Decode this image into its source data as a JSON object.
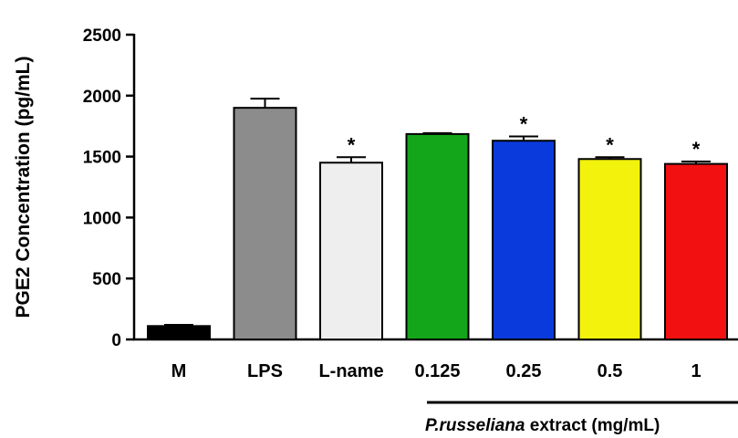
{
  "chart_data": {
    "type": "bar",
    "ylabel": "PGE2 Concentration (pg/mL)",
    "ylim": [
      0,
      2500
    ],
    "yticks": [
      0,
      500,
      1000,
      1500,
      2000,
      2500
    ],
    "categories": [
      "M",
      "LPS",
      "L-name",
      "0.125",
      "0.25",
      "0.5",
      "1"
    ],
    "values": [
      110,
      1900,
      1450,
      1685,
      1630,
      1480,
      1440
    ],
    "errors": [
      10,
      75,
      45,
      8,
      35,
      15,
      20
    ],
    "colors": [
      "#000000",
      "#8c8c8c",
      "#eeeeee",
      "#13a51a",
      "#0a3adb",
      "#f2f20c",
      "#f21010"
    ],
    "significance": [
      "",
      "",
      "*",
      "",
      "*",
      "*",
      "*"
    ],
    "group_label": {
      "italic_part": "P.russeliana",
      "rest": " extract (mg/mL)"
    }
  }
}
